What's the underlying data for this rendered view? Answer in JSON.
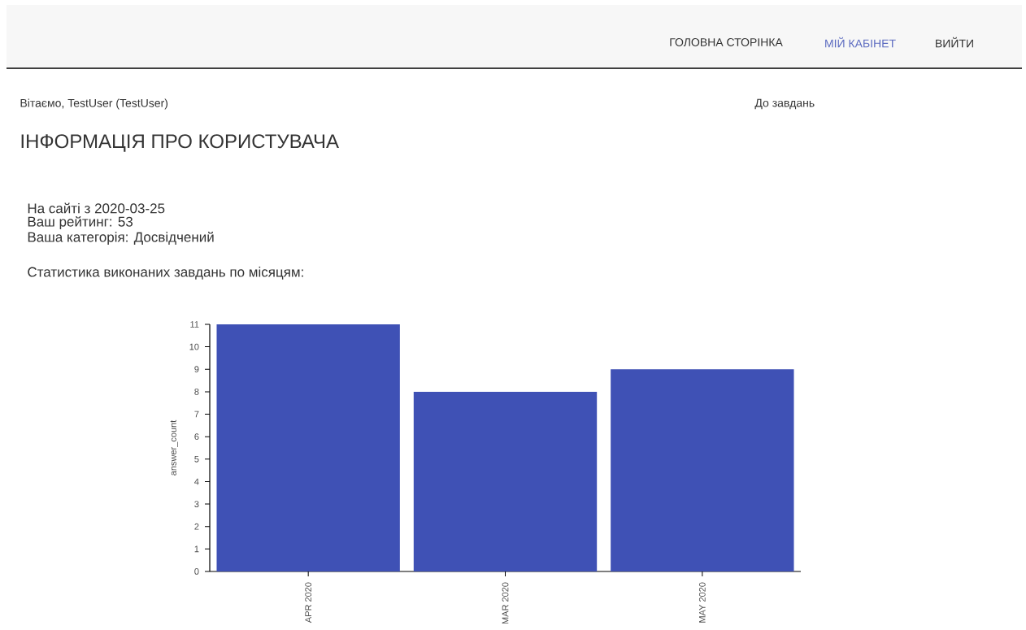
{
  "chart_data": {
    "type": "bar",
    "title": "Статистика виконаних завдань по місяцям:",
    "annotations": [
      "ГОЛОВНА СТОРІНКА",
      "МІЙ КАБІНЕТ",
      "ВИЙТИ",
      "Вітаємо, TestUser (TestUser)",
      "До завдань",
      "ІНФОРМАЦІЯ ПРО КОРИСТУВАЧА",
      "На сайті з 2020-03-25",
      "Ваш рейтинг: 53",
      "Ваша категорія: Досвідчений"
    ],
    "categories": [
      "APR 2020",
      "MAR 2020",
      "MAY 2020"
    ],
    "values": [
      11,
      8,
      9
    ],
    "color": "#3f51b5",
    "ylabel": "answer_count",
    "ylim": [
      0,
      11
    ],
    "yticks": [
      0,
      1,
      2,
      3,
      4,
      5,
      6,
      7,
      8,
      9,
      10,
      11
    ]
  }
}
